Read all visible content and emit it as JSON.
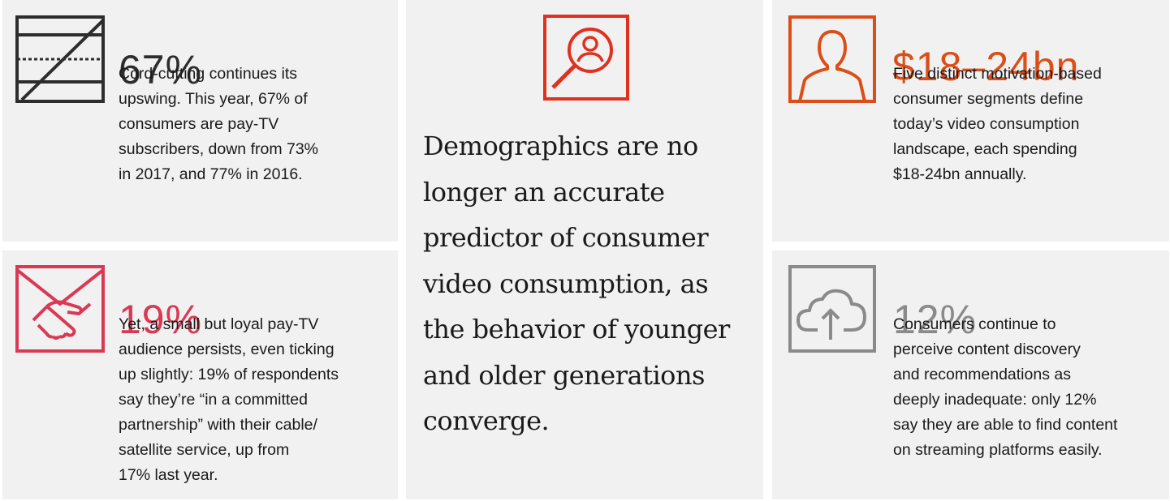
{
  "colors": {
    "panel_bg": "#f1f1f1",
    "dark": "#2d2d2d",
    "pink": "#d93954",
    "orange": "#db4e18",
    "red": "#e0301e",
    "grey": "#8a8a8a"
  },
  "cards": {
    "cord_cutting": {
      "icon": "tv-cord-cut-icon",
      "stat": "67%",
      "lines": [
        "Cord-cutting continues its",
        "upswing. This year, 67% of",
        "consumers are pay-TV",
        "subscribers, down from 73%",
        "in 2017, and 77% in 2016."
      ]
    },
    "loyal_audience": {
      "icon": "handshake-icon",
      "stat": "19%",
      "lines": [
        "Yet, a small but loyal pay-TV",
        "audience persists, even ticking",
        "up slightly: 19% of respondents",
        "say they’re “in a committed",
        "partnership” with their cable/",
        "satellite service, up from",
        "17% last year."
      ]
    },
    "segments": {
      "icon": "person-frame-icon",
      "stat": "$18–24bn",
      "lines": [
        "Five distinct motivation-based",
        "consumer segments define",
        "today’s video consumption",
        "landscape, each spending",
        "$18-24bn annually."
      ]
    },
    "discovery": {
      "icon": "cloud-upload-icon",
      "stat": "12%",
      "lines": [
        "Consumers continue to",
        "perceive content discovery",
        "and recommendations as",
        "deeply inadequate: only 12%",
        "say they are able to find content",
        "on streaming platforms easily."
      ]
    }
  },
  "center": {
    "icon": "magnifier-person-icon",
    "quote_lines": [
      "Demographics are no",
      "longer an accurate",
      "predictor of consumer",
      "video consumption, as",
      "the behavior of younger",
      "and older generations",
      "converge."
    ]
  }
}
